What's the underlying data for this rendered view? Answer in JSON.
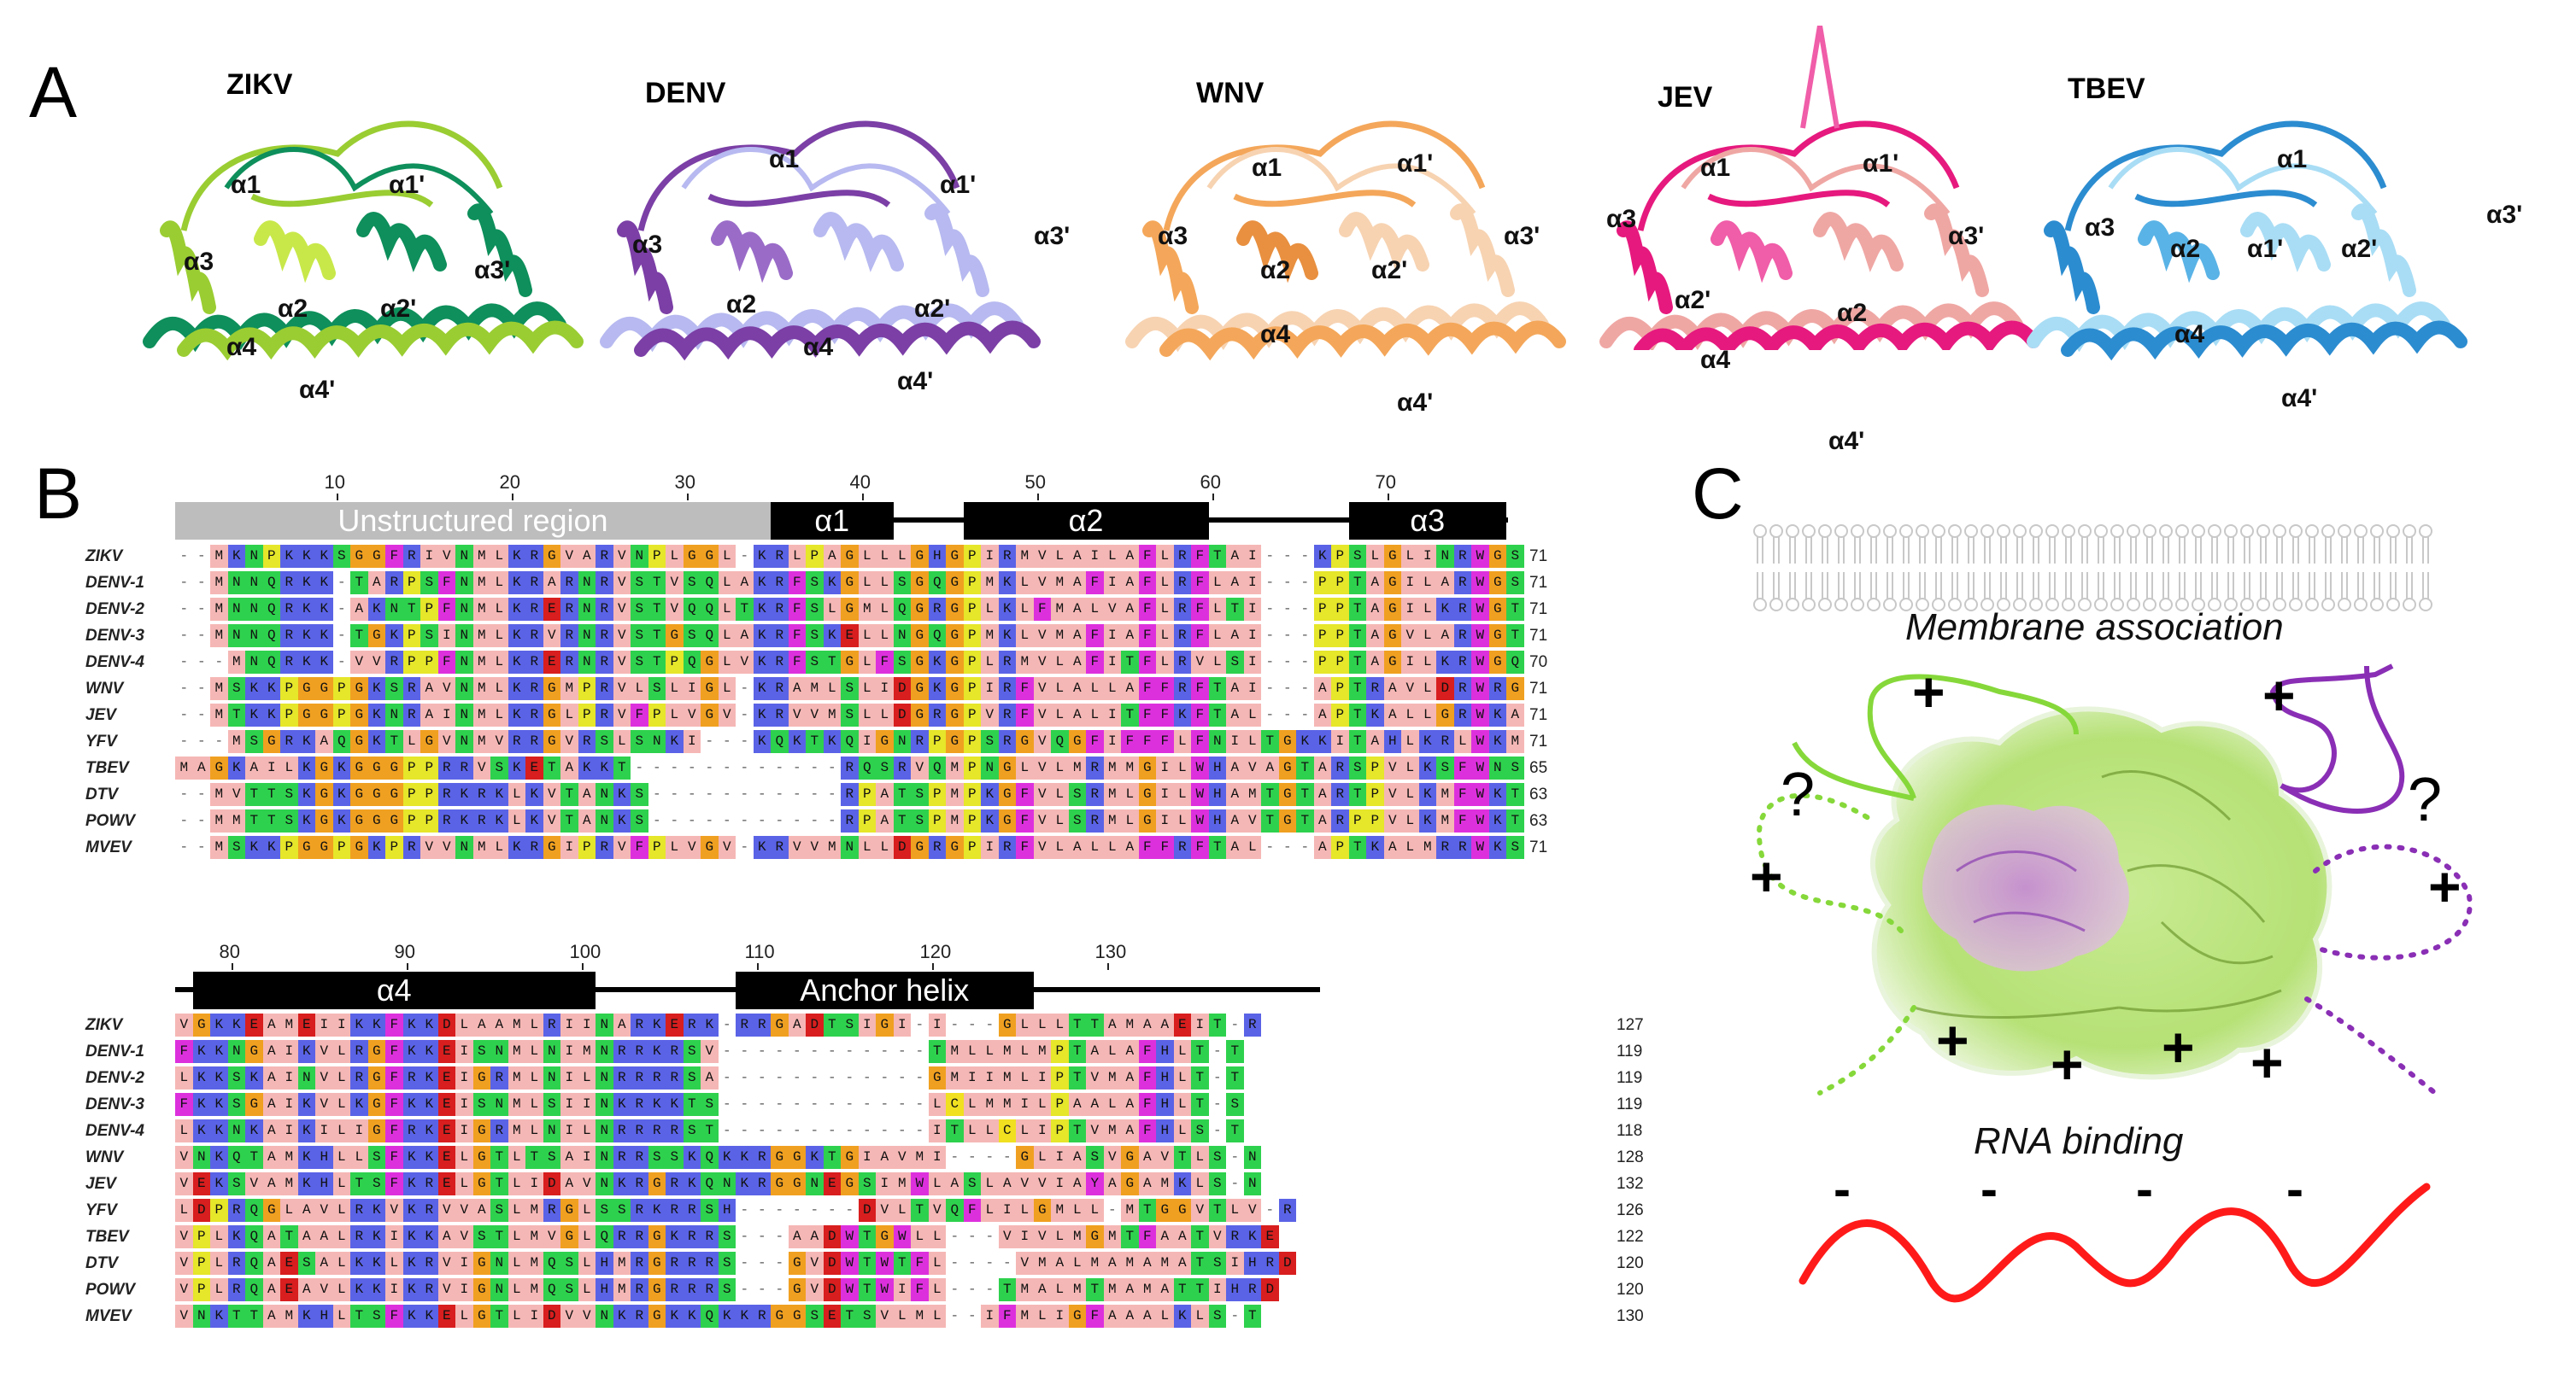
{
  "panel_a": {
    "letter": "A",
    "structures": [
      {
        "name": "ZIKV",
        "labels": [
          "α1",
          "α1'",
          "α3",
          "α2",
          "α2'",
          "α3'",
          "α4",
          "α4'"
        ],
        "colors": [
          "#9ACD32",
          "#0E8F5B",
          "#C8E84A"
        ]
      },
      {
        "name": "DENV",
        "labels": [
          "α1",
          "α3",
          "α2",
          "α4",
          "α1'",
          "α3'",
          "α2'",
          "α4'"
        ],
        "colors": [
          "#7B3FA6",
          "#B7B9F0",
          "#9A6CC8"
        ]
      },
      {
        "name": "WNV",
        "labels": [
          "α1",
          "α1'",
          "α3",
          "α2",
          "α2'",
          "α3'",
          "α4",
          "α4'"
        ],
        "colors": [
          "#F4A75A",
          "#F7D3B2",
          "#E89040"
        ]
      },
      {
        "name": "JEV",
        "labels": [
          "α1",
          "α1'",
          "α3",
          "α3'",
          "α2'",
          "α2",
          "α4",
          "α4'"
        ],
        "colors": [
          "#E6197E",
          "#EFA7A4",
          "#F05DA8"
        ]
      },
      {
        "name": "TBEV",
        "labels": [
          "α1",
          "α3",
          "α2",
          "α1'",
          "α2'",
          "α3'",
          "α4",
          "α4'"
        ],
        "colors": [
          "#2C8CD0",
          "#A9DDF5",
          "#5AB3E6"
        ]
      }
    ]
  },
  "panel_b": {
    "letter": "B",
    "block1": {
      "ruler": [
        "10",
        "20",
        "30",
        "40",
        "50",
        "60",
        "70"
      ],
      "regions": [
        {
          "label": "Unstructured region",
          "color": "#bdbdbd"
        },
        {
          "label": "α1",
          "color": "#000000"
        },
        {
          "label": "α2",
          "color": "#000000"
        },
        {
          "label": "α3",
          "color": "#000000"
        }
      ],
      "rows": [
        {
          "name": "ZIKV",
          "end": "71"
        },
        {
          "name": "DENV-1",
          "end": "71"
        },
        {
          "name": "DENV-2",
          "end": "71"
        },
        {
          "name": "DENV-3",
          "end": "71"
        },
        {
          "name": "DENV-4",
          "end": "70"
        },
        {
          "name": "WNV",
          "end": "71"
        },
        {
          "name": "JEV",
          "end": "71"
        },
        {
          "name": "YFV",
          "end": "71"
        },
        {
          "name": "TBEV",
          "end": "65"
        },
        {
          "name": "DTV",
          "end": "63"
        },
        {
          "name": "POWV",
          "end": "63"
        },
        {
          "name": "MVEV",
          "end": "71"
        }
      ]
    },
    "block2": {
      "ruler": [
        "80",
        "90",
        "100",
        "110",
        "120",
        "130"
      ],
      "regions": [
        {
          "label": "α4",
          "color": "#000000"
        },
        {
          "label": "Anchor helix",
          "color": "#000000"
        }
      ],
      "rows": [
        {
          "name": "ZIKV",
          "end": "127"
        },
        {
          "name": "DENV-1",
          "end": "119"
        },
        {
          "name": "DENV-2",
          "end": "119"
        },
        {
          "name": "DENV-3",
          "end": "119"
        },
        {
          "name": "DENV-4",
          "end": "118"
        },
        {
          "name": "WNV",
          "end": "128"
        },
        {
          "name": "JEV",
          "end": "132"
        },
        {
          "name": "YFV",
          "end": "126"
        },
        {
          "name": "TBEV",
          "end": "122"
        },
        {
          "name": "DTV",
          "end": "120"
        },
        {
          "name": "POWV",
          "end": "120"
        },
        {
          "name": "MVEV",
          "end": "130"
        }
      ]
    },
    "sequences1": [
      "--MKNPKKKSGGFRIVNMLKRGVARVNPLGGL-KRLPAGLLLGHGPIRMVLAILAFLRFTAI---KPSLGLINRWGS",
      "--MNNQRKK-TARPSFNMLKRARNRVSTVSQLAKRFSKGLLSGQGPMKLVMAFIAFLRFLAI---PPTAGILARWGS",
      "--MNNQRKK-AKNTPFNMLKRERNRVSTVQQLTKRFSLGMLQGRGPLKLFMALVAFLRFLTI---PPTAGILKRWGT",
      "--MNNQRKK-TGKPSINMLKRVRNRVSTGSQLAKRFSKELLNGQGPMKLVMAFIAFLRFLAI---PPTAGVLARWGT",
      "---MNQRKK-VVRPPFNMLKRERNRVSTPQGLVKRFSTGLFSGKGPLRMVLAFITFLRVLSI---PPTAGILKRWGQ",
      "--MSKKPGGPGKSRAVNMLKRGMPRVLSLIGL-KRAMLSLIDGKGPIRFVLALLAFFRFTAI---APTRAVLDRWRG",
      "--MTKKPGGPGKNRAINMLKRGLPRVFPLVGV-KRVVMSLLDGRGPVRFVLALITFFKFTAL---APTKALLGRWKA",
      "---MSGRKAQGKTLGVNMVRRGVRSLSNKI---KQKTKQIGNRPGPSRGVQGFIFFFLFNILTGKKITAHLKRLWKM",
      "MAGKAILKGKGGGPPRRVSKETAKKT------------RQSRVQMPNGLVLMRMMGILWHAVAGTARSPVLKSFWNS",
      "--MVTTSKGKGGGPPRKRKLKVTANKS-----------RPATSPMPKGFVLSRMLGILWHAMTGTARTPVLKMFWKT",
      "--MMTTSKGKGGGPPRKRKLKVTANKS-----------RPATSPMPKGFVLSRMLGILWHAVTGTARPPVLKMFWKT",
      "--MSKKPGGPGKPRVVNMLKRGIPRVFPLVGV-KRVVMNLLDGRGPIRFVLALLAFFRFTAL---APTKALMRRWKS"
    ],
    "sequences2": [
      "VGKKEAMEIIKKFKKDLAAMLRIINARKERK-RRGADTSIGI-I---GLLLTTAMAAEIT-R",
      "FKKNGAIKVLRGFKKEISNMLNIMNRRKRSV------------TMLLMLMPTALAFHLT-T",
      "LKKSKAINVLRGFRKEIGRMLNILNRRRRSA------------GMIIMLIPTVMAFHLT-T",
      "FKKSGAIKVLKGFKKEISNMLSIINKRKKTS------------LCLMMILPAALAFHLT-S",
      "LKKNKAIKILIGFRKEIGRMLNILNRRRRST------------ITLLCLIPTVMAFHLS-T",
      "VNKQTAMKHLLSFKKELGTLTSAINRRSSKQKKRGGKTGIAVMI----GLIASVGAVTLS-N",
      "VEKSVAMKHLTSFKRELGTLIDAVNKRGRKQNKRGGNEGSIMWLASLAVVIAYAGAMKLS-N",
      "LDPRQGLAVLRKVKRVVASLMRGLSSRKRRSH-------DVLTVQFLILGMLL-MTGGVTLV-R",
      "VPLKQATAALRKIKKAVSTLMVGLQRRGKRRS---AADWTGWLL---VIVLMGMTFAATVRKE",
      "VPLRQAESALKKLKRVIGNLMQSLHMRGRRRS---GVDWTWTFL----VMALMAMAMATSIHRD",
      "VPLRQAEAVLKKIKRVIGNLMQSLHMRGRRRS---GVDWTWIFL---TMALMTMAMATTIHRD",
      "VNKTTAMKHLTSFKKELGTLIDVVNKRGKKQKKRGGSETSVLML--IFMLIGFAAALKLS-T"
    ],
    "aa_colors": {
      "K": "#5A63E6",
      "R": "#5A63E6",
      "H": "#5A63E6",
      "D": "#D81E1E",
      "E": "#D81E1E",
      "S": "#2ED14D",
      "T": "#2ED14D",
      "N": "#2ED14D",
      "Q": "#2ED14D",
      "G": "#F0A020",
      "P": "#E6E62A",
      "C": "#F0E020",
      "A": "#F5B7B5",
      "V": "#F5B7B5",
      "L": "#F5B7B5",
      "I": "#F5B7B5",
      "M": "#F5B7B5",
      "F": "#DD30DD",
      "W": "#DD30DD",
      "Y": "#DD30DD"
    }
  },
  "panel_c": {
    "letter": "C",
    "membrane_label": "Membrane association",
    "rna_label": "RNA binding",
    "question_mark": "?",
    "plus": "+",
    "minus": "-",
    "colors": {
      "green": "#86D83A",
      "purple": "#8A2FB5",
      "rna": "#FF1A1A",
      "membrane": "#c8c8c8"
    }
  }
}
